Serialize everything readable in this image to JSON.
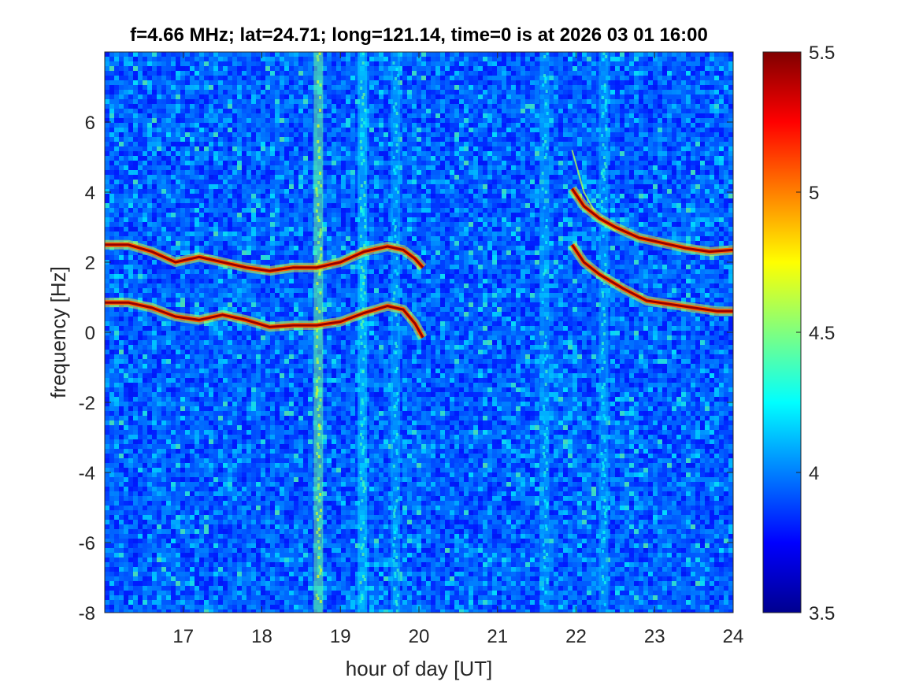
{
  "chart_data": {
    "type": "heatmap",
    "title": "f=4.66 MHz;  lat=24.71; long=121.14, time=0 is at 2026 03 01 16:00",
    "xlabel": "hour of day [UT]",
    "ylabel": "frequency [Hz]",
    "xlim": [
      16,
      24
    ],
    "ylim": [
      -8,
      8
    ],
    "x_ticks": [
      "17",
      "18",
      "19",
      "20",
      "21",
      "22",
      "23",
      "24"
    ],
    "y_ticks": [
      "-8",
      "-6",
      "-4",
      "-2",
      "0",
      "2",
      "4",
      "6"
    ],
    "colormap": "jet",
    "clim": [
      3.5,
      5.5
    ],
    "colorbar_ticks": [
      "3.5",
      "4",
      "4.5",
      "5",
      "5.5"
    ],
    "background_level": 3.95,
    "vertical_bright_bands": [
      {
        "x": 18.72,
        "level": 4.45
      },
      {
        "x": 19.28,
        "level": 4.2
      },
      {
        "x": 19.7,
        "level": 4.1
      },
      {
        "x": 21.6,
        "level": 4.1
      },
      {
        "x": 22.35,
        "level": 4.1
      }
    ],
    "traces": [
      {
        "x": [
          16.0,
          16.3,
          16.6,
          16.9,
          17.2,
          17.5,
          17.8,
          18.1,
          18.4,
          18.7,
          19.0,
          19.3,
          19.6,
          19.8,
          19.95,
          20.05
        ],
        "y": [
          2.5,
          2.5,
          2.3,
          2.0,
          2.15,
          2.0,
          1.85,
          1.75,
          1.85,
          1.85,
          2.0,
          2.3,
          2.45,
          2.35,
          2.1,
          1.85
        ]
      },
      {
        "x": [
          16.0,
          16.3,
          16.6,
          16.9,
          17.2,
          17.5,
          17.8,
          18.1,
          18.4,
          18.7,
          19.0,
          19.3,
          19.6,
          19.8,
          19.95,
          20.05
        ],
        "y": [
          0.85,
          0.85,
          0.7,
          0.45,
          0.35,
          0.5,
          0.35,
          0.15,
          0.2,
          0.2,
          0.3,
          0.55,
          0.75,
          0.65,
          0.25,
          -0.15
        ]
      },
      {
        "x": [
          21.95,
          22.1,
          22.3,
          22.5,
          22.8,
          23.1,
          23.4,
          23.7,
          24.0
        ],
        "y": [
          4.1,
          3.6,
          3.25,
          3.0,
          2.7,
          2.55,
          2.4,
          2.3,
          2.35
        ]
      },
      {
        "x": [
          21.95,
          22.1,
          22.3,
          22.6,
          22.9,
          23.2,
          23.5,
          23.8,
          24.0
        ],
        "y": [
          2.5,
          2.0,
          1.65,
          1.25,
          0.9,
          0.8,
          0.7,
          0.6,
          0.6
        ]
      }
    ],
    "faint_traces": [
      {
        "x": [
          21.95,
          22.1,
          22.3,
          22.5
        ],
        "y": [
          5.2,
          4.0,
          3.2,
          2.9
        ]
      }
    ]
  }
}
